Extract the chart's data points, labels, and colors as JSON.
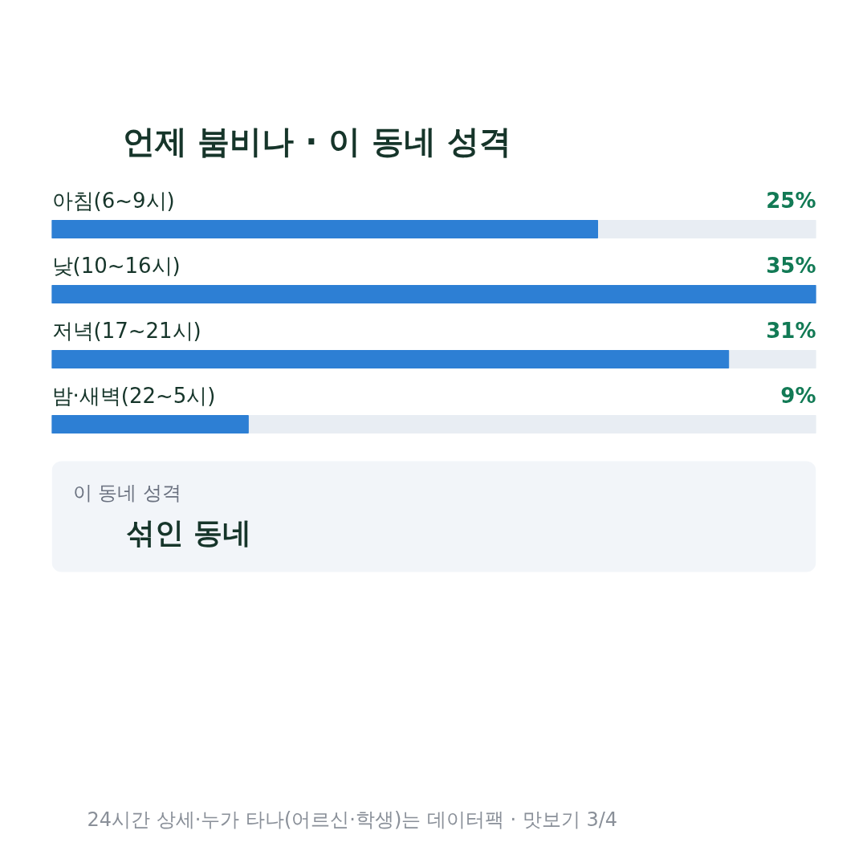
{
  "chart_data": {
    "type": "bar",
    "orientation": "horizontal",
    "title": "언제 붐비나 · 이 동네 성격",
    "categories": [
      "아침(6~9시)",
      "낮(10~16시)",
      "저녁(17~21시)",
      "밤·새벽(22~5시)"
    ],
    "values": [
      25,
      35,
      31,
      9
    ],
    "value_labels": [
      "25%",
      "35%",
      "31%",
      "9%"
    ],
    "color": "#2d7fd4",
    "xlim": [
      0,
      35
    ],
    "tick_labels": false,
    "annotations": [
      "이 동네 성격",
      "섞인 동네",
      "24시간 상세·누가 타나(어르신·학생)는 데이터팩 · 맛보기 3/4"
    ]
  }
}
